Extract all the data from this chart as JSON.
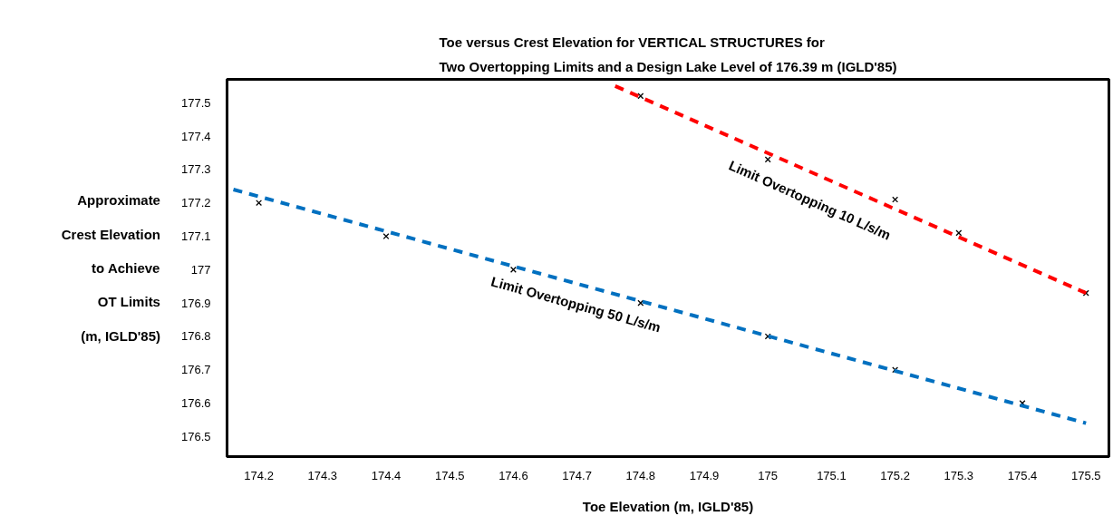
{
  "chart_data": {
    "type": "scatter",
    "title": "Toe versus Crest Elevation for VERTICAL STRUCTURES for\nTwo Overtopping Limits and a Design Lake Level of 176.39 m (IGLD'85)",
    "xlabel": "Toe Elevation (m, IGLD'85)",
    "ylabel": "Approximate\nCrest Elevation\nto Achieve\nOT Limits\n(m, IGLD'85)",
    "series": [
      {
        "color": "#000000",
        "marker": "cross",
        "x": [
          174.2,
          174.4,
          174.6,
          174.8,
          175.0,
          175.2,
          175.4
        ],
        "values": [
          177.2,
          177.1,
          177.0,
          176.9,
          176.8,
          176.7,
          176.6
        ]
      },
      {
        "color": "#000000",
        "marker": "cross",
        "x": [
          174.8,
          175.0,
          175.2,
          175.3,
          175.5
        ],
        "values": [
          177.52,
          177.33,
          177.21,
          177.11,
          176.93
        ]
      },
      {
        "type": "line",
        "color": "#0070c0",
        "marker": "none",
        "line_style": "dashed",
        "x": [
          174.16,
          175.5
        ],
        "values": [
          177.24,
          176.54
        ]
      },
      {
        "type": "line",
        "color": "#ff0000",
        "marker": "none",
        "line_style": "dashed",
        "x": [
          174.76,
          175.5
        ],
        "values": [
          177.55,
          176.93
        ]
      }
    ],
    "annotations": [
      "Limit Overtopping 50 L/s/m",
      "Limit Overtopping 10 L/s/m"
    ],
    "xlim": [
      174.15,
      175.536
    ],
    "ylim": [
      176.44,
      177.57
    ],
    "xticks": [
      174.2,
      174.3,
      174.4,
      174.5,
      174.6,
      174.7,
      174.8,
      174.9,
      175.0,
      175.1,
      175.2,
      175.3,
      175.4,
      175.5
    ],
    "yticks": [
      176.5,
      176.6,
      176.7,
      176.8,
      176.9,
      177.0,
      177.1,
      177.2,
      177.3,
      177.4,
      177.5
    ],
    "grid": false
  }
}
